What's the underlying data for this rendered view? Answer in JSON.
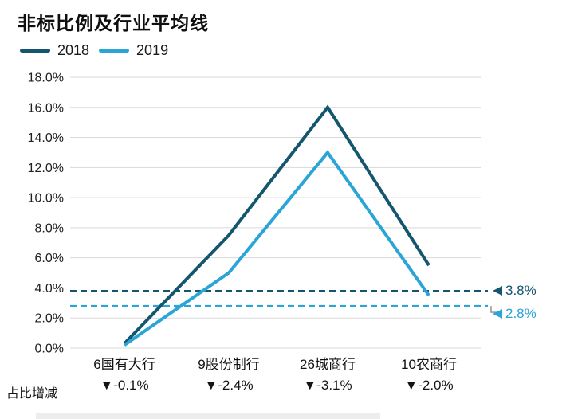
{
  "title": "非标比例及行业平均线",
  "row_label": "占比增减",
  "colors": {
    "s2018": "#15566F",
    "s2019": "#2AA5D6",
    "grid": "#d9d9d9",
    "leader": "#8c8c8c"
  },
  "chart_data": {
    "type": "line",
    "title": "非标比例及行业平均线",
    "categories": [
      {
        "name": "6国有大行",
        "delta": "▼-0.1%"
      },
      {
        "name": "9股份制行",
        "delta": "▼-2.4%"
      },
      {
        "name": "26城商行",
        "delta": "▼-3.1%"
      },
      {
        "name": "10农商行",
        "delta": "▼-2.0%"
      }
    ],
    "series": [
      {
        "name": "2018",
        "color": "#15566F",
        "values": [
          0.3,
          7.5,
          16.0,
          5.5
        ]
      },
      {
        "name": "2019",
        "color": "#2AA5D6",
        "values": [
          0.2,
          5.0,
          13.0,
          3.5
        ]
      }
    ],
    "average_lines": [
      {
        "series": "2018",
        "label": "3.8%",
        "value": 3.8,
        "color": "#15566F"
      },
      {
        "series": "2019",
        "label": "2.8%",
        "value": 2.8,
        "color": "#2AA5D6"
      }
    ],
    "y_ticks": [
      "0.0%",
      "2.0%",
      "4.0%",
      "6.0%",
      "8.0%",
      "10.0%",
      "12.0%",
      "14.0%",
      "16.0%",
      "18.0%"
    ],
    "ylim": [
      0,
      18
    ],
    "xlabel": "",
    "ylabel": "",
    "grid": true,
    "legend_position": "top-left"
  }
}
